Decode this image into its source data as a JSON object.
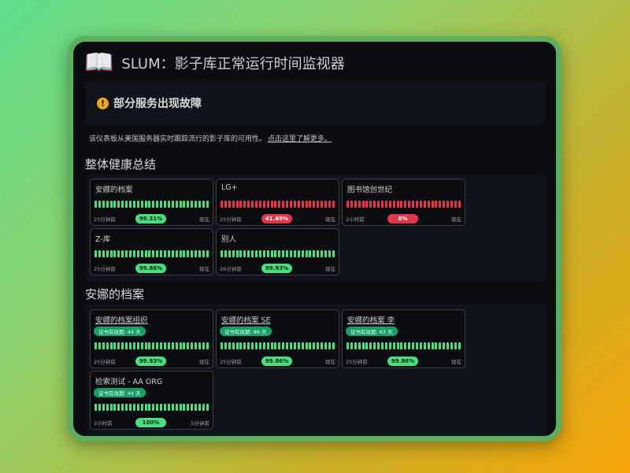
{
  "header": {
    "icon": "open-book-icon",
    "title": "SLUM：影子库正常运行时间监视器"
  },
  "alert": {
    "icon": "exclamation-circle-icon",
    "text": "部分服务出现故障"
  },
  "description": {
    "text": "该仪表板从美国服务器实时跟踪流行的影子库的可用性。",
    "link": "点击这里了解更多。"
  },
  "colors": {
    "up": "#4ade80",
    "down": "#e0374a",
    "cert": "#17a065"
  },
  "overall": {
    "title": "整体健康总结",
    "cards": [
      {
        "name": "安娜的档案",
        "status": "up",
        "start": "25分钟前",
        "end": "现在",
        "uptime": "99.31%"
      },
      {
        "name": "LG+",
        "status": "down",
        "start": "25分钟前",
        "end": "现在",
        "uptime": "41.69%"
      },
      {
        "name": "图书馆创世纪",
        "status": "down",
        "start": "2小时前",
        "end": "现在",
        "uptime": "0%"
      },
      {
        "name": "Z-库",
        "status": "up",
        "start": "25分钟前",
        "end": "现在",
        "uptime": "99.86%"
      },
      {
        "name": "别人",
        "status": "up",
        "start": "26分钟前",
        "end": "现在",
        "uptime": "99.93%"
      }
    ]
  },
  "annas": {
    "title": "安娜的档案",
    "cards": [
      {
        "name": "安娜的档案组织",
        "cert": "证书有效期: 44 天",
        "status": "up",
        "start": "25分钟前",
        "end": "现在",
        "uptime": "99.93%",
        "link": true
      },
      {
        "name": "安娜的档案 SE",
        "cert": "证书有效期: 86 天",
        "status": "up",
        "start": "25分钟前",
        "end": "现在",
        "uptime": "99.86%",
        "link": true
      },
      {
        "name": "安娜的档案 李",
        "cert": "证书有效期: 63 天",
        "status": "up",
        "start": "25分钟前",
        "end": "现在",
        "uptime": "99.86%",
        "link": true
      },
      {
        "name": "检索测试 - AA ORG",
        "cert": "证书有效期: 44 天",
        "status": "up",
        "start": "2小时前",
        "end": "5分钟前",
        "uptime": "100%",
        "link": false
      }
    ]
  }
}
